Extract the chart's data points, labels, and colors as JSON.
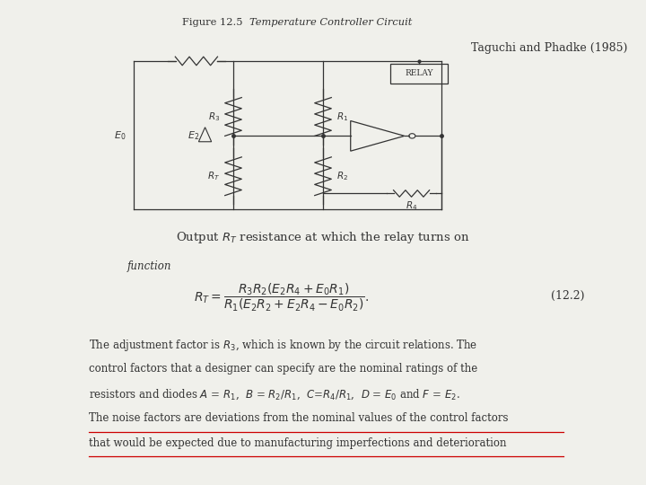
{
  "background_color": "#f0f0eb",
  "fig_title_plain": "Figure 12.5  ",
  "fig_title_italic": "Temperature Controller Circuit",
  "attribution": "Taguchi and Phadke (1985)",
  "caption": "Output $R_T$ resistance at which the relay turns on",
  "function_label": "function",
  "eq_number": "(12.2)",
  "para_lines": [
    "The adjustment factor is $R_3$, which is known by the circuit relations. The",
    "control factors that a designer can specify are the nominal ratings of the",
    "resistors and diodes $A$ = $R_1$,  $B$ = $R_2/R_1$,  $C$=$R_4/R_1$,  $D$ = $E_0$ and $F$ = $E_2$.",
    "The noise factors are deviations from the nominal values of the control factors",
    "that would be expected due to manufacturing imperfections and deterioration"
  ],
  "underline_lines": [
    3,
    4
  ],
  "underline_color": "#cc0000",
  "text_color": "#333333"
}
